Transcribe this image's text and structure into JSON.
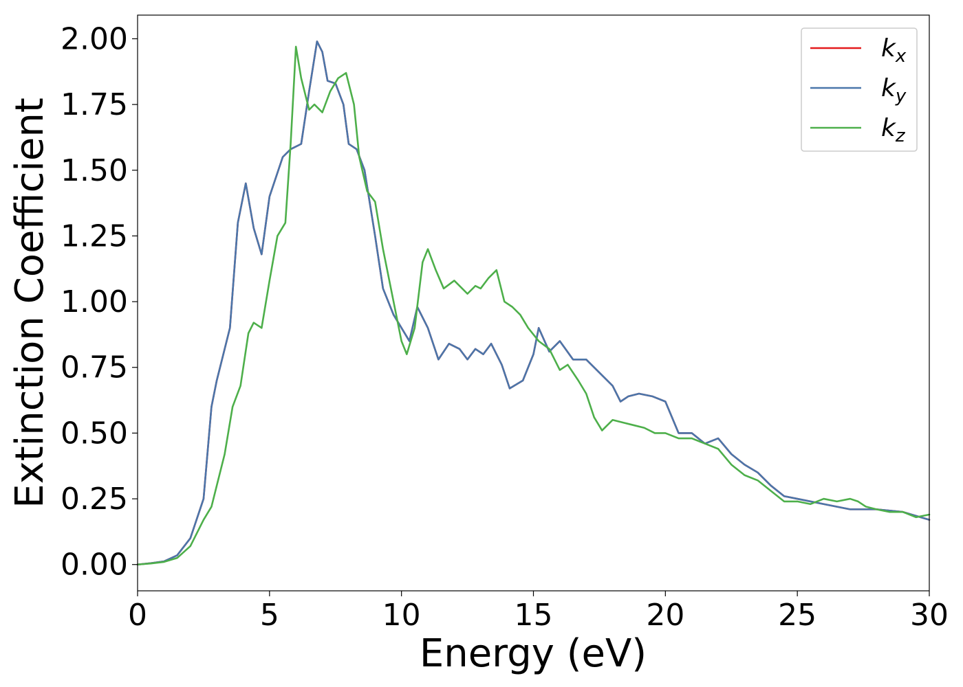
{
  "chart_data": {
    "type": "line",
    "title": "",
    "xlabel": "Energy (eV)",
    "ylabel": "Extinction Coefficient",
    "xlim": [
      0,
      30
    ],
    "ylim": [
      -0.1,
      2.09
    ],
    "xticks": [
      "0",
      "5",
      "10",
      "15",
      "20",
      "25",
      "30"
    ],
    "yticks": [
      "0.00",
      "0.25",
      "0.50",
      "0.75",
      "1.00",
      "1.25",
      "1.50",
      "1.75",
      "2.00"
    ],
    "grid": false,
    "legend_position": "top-right",
    "series": [
      {
        "name": "k_x",
        "legend_base": "k",
        "legend_sub": "x",
        "color": "#e41a1c",
        "points": [
          [
            0,
            0
          ],
          [
            0.5,
            0.005
          ],
          [
            1,
            0.012
          ],
          [
            1.5,
            0.035
          ],
          [
            2,
            0.1
          ],
          [
            2.5,
            0.25
          ],
          [
            2.8,
            0.6
          ],
          [
            3,
            0.7
          ],
          [
            3.5,
            0.9
          ],
          [
            3.8,
            1.3
          ],
          [
            4.1,
            1.45
          ],
          [
            4.4,
            1.28
          ],
          [
            4.7,
            1.18
          ],
          [
            5,
            1.4
          ],
          [
            5.5,
            1.55
          ],
          [
            5.8,
            1.58
          ],
          [
            6.2,
            1.6
          ],
          [
            6.5,
            1.8
          ],
          [
            6.8,
            1.99
          ],
          [
            7,
            1.95
          ],
          [
            7.2,
            1.84
          ],
          [
            7.5,
            1.83
          ],
          [
            7.8,
            1.75
          ],
          [
            8,
            1.6
          ],
          [
            8.3,
            1.58
          ],
          [
            8.6,
            1.5
          ],
          [
            9,
            1.25
          ],
          [
            9.3,
            1.05
          ],
          [
            9.7,
            0.95
          ],
          [
            10,
            0.9
          ],
          [
            10.3,
            0.85
          ],
          [
            10.6,
            0.98
          ],
          [
            11,
            0.9
          ],
          [
            11.4,
            0.78
          ],
          [
            11.8,
            0.84
          ],
          [
            12.2,
            0.82
          ],
          [
            12.5,
            0.78
          ],
          [
            12.8,
            0.82
          ],
          [
            13.1,
            0.8
          ],
          [
            13.4,
            0.84
          ],
          [
            13.8,
            0.76
          ],
          [
            14.1,
            0.67
          ],
          [
            14.6,
            0.7
          ],
          [
            15,
            0.8
          ],
          [
            15.2,
            0.9
          ],
          [
            15.6,
            0.81
          ],
          [
            16,
            0.85
          ],
          [
            16.5,
            0.78
          ],
          [
            17,
            0.78
          ],
          [
            17.5,
            0.73
          ],
          [
            18,
            0.68
          ],
          [
            18.3,
            0.62
          ],
          [
            18.6,
            0.64
          ],
          [
            19,
            0.65
          ],
          [
            19.5,
            0.64
          ],
          [
            20,
            0.62
          ],
          [
            20.5,
            0.5
          ],
          [
            21,
            0.5
          ],
          [
            21.5,
            0.46
          ],
          [
            22,
            0.48
          ],
          [
            22.5,
            0.42
          ],
          [
            23,
            0.38
          ],
          [
            23.5,
            0.35
          ],
          [
            24,
            0.3
          ],
          [
            24.5,
            0.26
          ],
          [
            25,
            0.25
          ],
          [
            26,
            0.23
          ],
          [
            27,
            0.21
          ],
          [
            28,
            0.21
          ],
          [
            29,
            0.2
          ],
          [
            30,
            0.17
          ]
        ]
      },
      {
        "name": "k_y",
        "legend_base": "k",
        "legend_sub": "y",
        "color": "#4a76aa",
        "points": [
          [
            0,
            0
          ],
          [
            0.5,
            0.005
          ],
          [
            1,
            0.012
          ],
          [
            1.5,
            0.035
          ],
          [
            2,
            0.1
          ],
          [
            2.5,
            0.25
          ],
          [
            2.8,
            0.6
          ],
          [
            3,
            0.7
          ],
          [
            3.5,
            0.9
          ],
          [
            3.8,
            1.3
          ],
          [
            4.1,
            1.45
          ],
          [
            4.4,
            1.28
          ],
          [
            4.7,
            1.18
          ],
          [
            5,
            1.4
          ],
          [
            5.5,
            1.55
          ],
          [
            5.8,
            1.58
          ],
          [
            6.2,
            1.6
          ],
          [
            6.5,
            1.8
          ],
          [
            6.8,
            1.99
          ],
          [
            7,
            1.95
          ],
          [
            7.2,
            1.84
          ],
          [
            7.5,
            1.83
          ],
          [
            7.8,
            1.75
          ],
          [
            8,
            1.6
          ],
          [
            8.3,
            1.58
          ],
          [
            8.6,
            1.5
          ],
          [
            9,
            1.25
          ],
          [
            9.3,
            1.05
          ],
          [
            9.7,
            0.95
          ],
          [
            10,
            0.9
          ],
          [
            10.3,
            0.85
          ],
          [
            10.6,
            0.98
          ],
          [
            11,
            0.9
          ],
          [
            11.4,
            0.78
          ],
          [
            11.8,
            0.84
          ],
          [
            12.2,
            0.82
          ],
          [
            12.5,
            0.78
          ],
          [
            12.8,
            0.82
          ],
          [
            13.1,
            0.8
          ],
          [
            13.4,
            0.84
          ],
          [
            13.8,
            0.76
          ],
          [
            14.1,
            0.67
          ],
          [
            14.6,
            0.7
          ],
          [
            15,
            0.8
          ],
          [
            15.2,
            0.9
          ],
          [
            15.6,
            0.81
          ],
          [
            16,
            0.85
          ],
          [
            16.5,
            0.78
          ],
          [
            17,
            0.78
          ],
          [
            17.5,
            0.73
          ],
          [
            18,
            0.68
          ],
          [
            18.3,
            0.62
          ],
          [
            18.6,
            0.64
          ],
          [
            19,
            0.65
          ],
          [
            19.5,
            0.64
          ],
          [
            20,
            0.62
          ],
          [
            20.5,
            0.5
          ],
          [
            21,
            0.5
          ],
          [
            21.5,
            0.46
          ],
          [
            22,
            0.48
          ],
          [
            22.5,
            0.42
          ],
          [
            23,
            0.38
          ],
          [
            23.5,
            0.35
          ],
          [
            24,
            0.3
          ],
          [
            24.5,
            0.26
          ],
          [
            25,
            0.25
          ],
          [
            26,
            0.23
          ],
          [
            27,
            0.21
          ],
          [
            28,
            0.21
          ],
          [
            29,
            0.2
          ],
          [
            30,
            0.17
          ]
        ]
      },
      {
        "name": "k_z",
        "legend_base": "k",
        "legend_sub": "z",
        "color": "#4daf4a",
        "points": [
          [
            0,
            0
          ],
          [
            0.5,
            0.004
          ],
          [
            1,
            0.01
          ],
          [
            1.5,
            0.025
          ],
          [
            2,
            0.07
          ],
          [
            2.5,
            0.17
          ],
          [
            2.8,
            0.22
          ],
          [
            3,
            0.3
          ],
          [
            3.3,
            0.42
          ],
          [
            3.6,
            0.6
          ],
          [
            3.9,
            0.68
          ],
          [
            4.2,
            0.88
          ],
          [
            4.4,
            0.92
          ],
          [
            4.7,
            0.9
          ],
          [
            5,
            1.08
          ],
          [
            5.3,
            1.25
          ],
          [
            5.6,
            1.3
          ],
          [
            5.8,
            1.6
          ],
          [
            6,
            1.97
          ],
          [
            6.2,
            1.85
          ],
          [
            6.5,
            1.73
          ],
          [
            6.7,
            1.75
          ],
          [
            7,
            1.72
          ],
          [
            7.3,
            1.8
          ],
          [
            7.6,
            1.85
          ],
          [
            7.9,
            1.87
          ],
          [
            8.2,
            1.75
          ],
          [
            8.4,
            1.55
          ],
          [
            8.7,
            1.42
          ],
          [
            9,
            1.38
          ],
          [
            9.3,
            1.2
          ],
          [
            9.7,
            1.0
          ],
          [
            10,
            0.85
          ],
          [
            10.2,
            0.8
          ],
          [
            10.5,
            0.9
          ],
          [
            10.8,
            1.15
          ],
          [
            11,
            1.2
          ],
          [
            11.3,
            1.12
          ],
          [
            11.6,
            1.05
          ],
          [
            12,
            1.08
          ],
          [
            12.3,
            1.05
          ],
          [
            12.5,
            1.03
          ],
          [
            12.8,
            1.06
          ],
          [
            13,
            1.05
          ],
          [
            13.3,
            1.09
          ],
          [
            13.6,
            1.12
          ],
          [
            13.9,
            1.0
          ],
          [
            14.2,
            0.98
          ],
          [
            14.5,
            0.95
          ],
          [
            14.8,
            0.9
          ],
          [
            15.2,
            0.85
          ],
          [
            15.6,
            0.82
          ],
          [
            16,
            0.74
          ],
          [
            16.3,
            0.76
          ],
          [
            16.7,
            0.7
          ],
          [
            17,
            0.65
          ],
          [
            17.3,
            0.56
          ],
          [
            17.6,
            0.51
          ],
          [
            18,
            0.55
          ],
          [
            18.4,
            0.54
          ],
          [
            18.8,
            0.53
          ],
          [
            19.2,
            0.52
          ],
          [
            19.6,
            0.5
          ],
          [
            20,
            0.5
          ],
          [
            20.5,
            0.48
          ],
          [
            21,
            0.48
          ],
          [
            21.5,
            0.46
          ],
          [
            22,
            0.44
          ],
          [
            22.5,
            0.38
          ],
          [
            23,
            0.34
          ],
          [
            23.5,
            0.32
          ],
          [
            24,
            0.28
          ],
          [
            24.5,
            0.24
          ],
          [
            25,
            0.24
          ],
          [
            25.5,
            0.23
          ],
          [
            26,
            0.25
          ],
          [
            26.5,
            0.24
          ],
          [
            27,
            0.25
          ],
          [
            27.3,
            0.24
          ],
          [
            27.6,
            0.22
          ],
          [
            28,
            0.21
          ],
          [
            28.5,
            0.2
          ],
          [
            29,
            0.2
          ],
          [
            29.5,
            0.18
          ],
          [
            30,
            0.19
          ]
        ]
      }
    ]
  }
}
